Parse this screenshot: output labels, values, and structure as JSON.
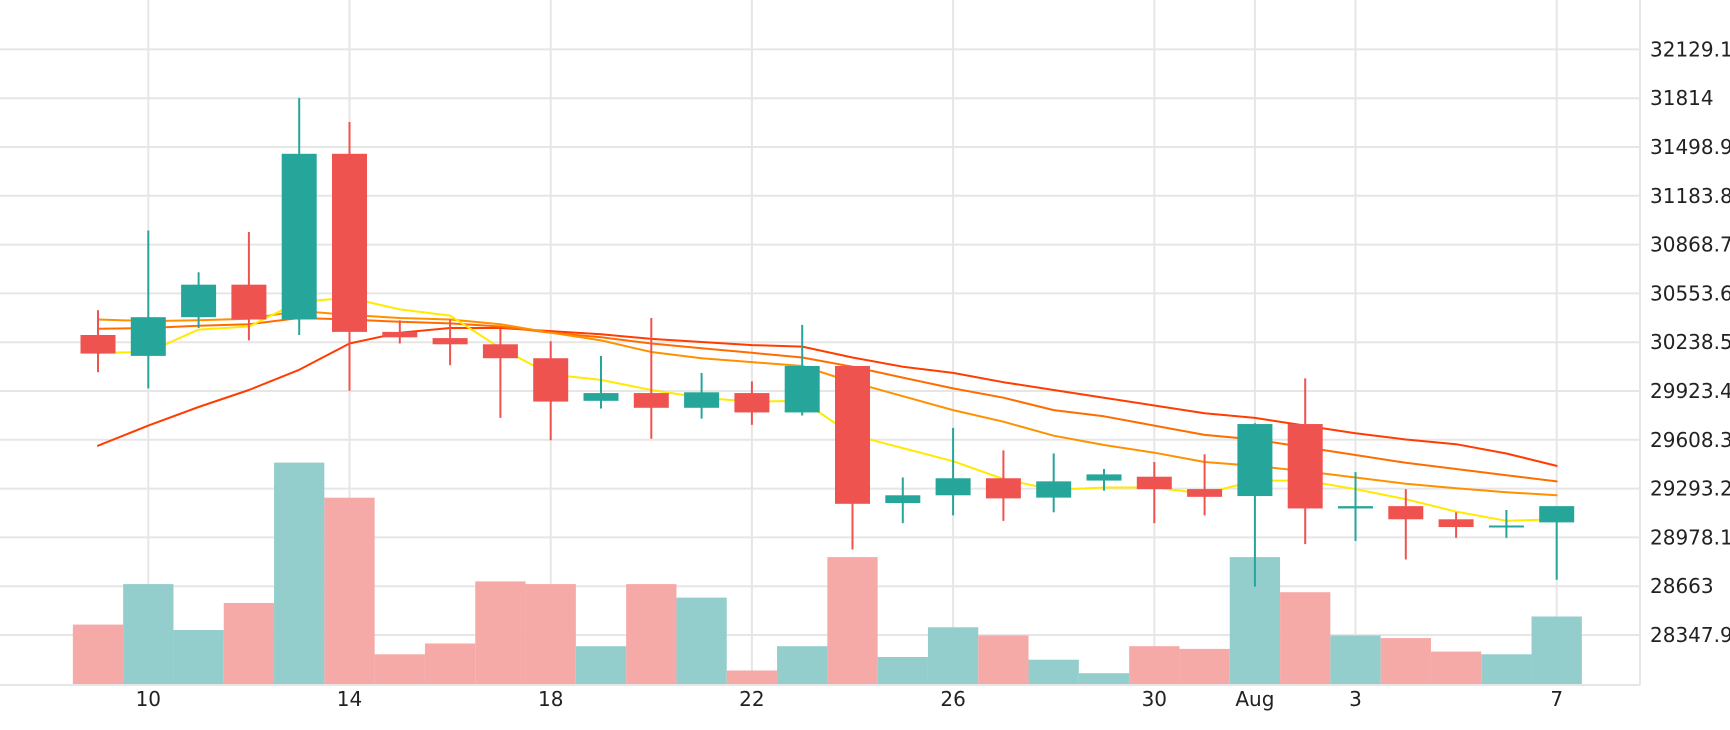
{
  "chart_data": {
    "type": "candlestick",
    "x_axis": {
      "ticks": [
        {
          "i": 1,
          "label": "10"
        },
        {
          "i": 5,
          "label": "14"
        },
        {
          "i": 9,
          "label": "18"
        },
        {
          "i": 13,
          "label": "22"
        },
        {
          "i": 17,
          "label": "26"
        },
        {
          "i": 21,
          "label": "30"
        },
        {
          "i": 23,
          "label": "Aug"
        },
        {
          "i": 25,
          "label": "3"
        },
        {
          "i": 29,
          "label": "7"
        }
      ]
    },
    "y_axis": {
      "ticks": [
        "32129.1",
        "31814",
        "31498.9",
        "31183.8",
        "30868.7",
        "30553.6",
        "30238.5",
        "29923.4",
        "29608.3",
        "29293.2",
        "28978.1",
        "28663",
        "28347.9"
      ],
      "range": [
        28033,
        32444
      ]
    },
    "candles": [
      {
        "date": "Jul 9",
        "open": 30285,
        "high": 30445,
        "low": 30045,
        "close": 30165
      },
      {
        "date": "Jul 10",
        "open": 30150,
        "high": 30960,
        "low": 29940,
        "close": 30400
      },
      {
        "date": "Jul 11",
        "open": 30400,
        "high": 30690,
        "low": 30330,
        "close": 30610
      },
      {
        "date": "Jul 12",
        "open": 30610,
        "high": 30950,
        "low": 30250,
        "close": 30385
      },
      {
        "date": "Jul 13",
        "open": 30385,
        "high": 31815,
        "low": 30285,
        "close": 31455
      },
      {
        "date": "Jul 14",
        "open": 31455,
        "high": 31660,
        "low": 29925,
        "close": 30305
      },
      {
        "date": "Jul 15",
        "open": 30305,
        "high": 30380,
        "low": 30230,
        "close": 30270
      },
      {
        "date": "Jul 16",
        "open": 30265,
        "high": 30385,
        "low": 30090,
        "close": 30225
      },
      {
        "date": "Jul 17",
        "open": 30225,
        "high": 30325,
        "low": 29750,
        "close": 30135
      },
      {
        "date": "Jul 18",
        "open": 30135,
        "high": 30245,
        "low": 29605,
        "close": 29855
      },
      {
        "date": "Jul 19",
        "open": 29860,
        "high": 30150,
        "low": 29810,
        "close": 29910
      },
      {
        "date": "Jul 20",
        "open": 29910,
        "high": 30395,
        "low": 29615,
        "close": 29815
      },
      {
        "date": "Jul 21",
        "open": 29815,
        "high": 30040,
        "low": 29745,
        "close": 29915
      },
      {
        "date": "Jul 22",
        "open": 29910,
        "high": 29985,
        "low": 29705,
        "close": 29785
      },
      {
        "date": "Jul 23",
        "open": 29785,
        "high": 30350,
        "low": 29765,
        "close": 30085
      },
      {
        "date": "Jul 24",
        "open": 30085,
        "high": 30085,
        "low": 28900,
        "close": 29195
      },
      {
        "date": "Jul 25",
        "open": 29200,
        "high": 29365,
        "low": 29070,
        "close": 29250
      },
      {
        "date": "Jul 26",
        "open": 29250,
        "high": 29685,
        "low": 29120,
        "close": 29360
      },
      {
        "date": "Jul 27",
        "open": 29360,
        "high": 29540,
        "low": 29085,
        "close": 29230
      },
      {
        "date": "Jul 28",
        "open": 29235,
        "high": 29520,
        "low": 29140,
        "close": 29340
      },
      {
        "date": "Jul 29",
        "open": 29345,
        "high": 29420,
        "low": 29280,
        "close": 29385
      },
      {
        "date": "Jul 30",
        "open": 29370,
        "high": 29465,
        "low": 29070,
        "close": 29290
      },
      {
        "date": "Jul 31",
        "open": 29290,
        "high": 29515,
        "low": 29120,
        "close": 29240
      },
      {
        "date": "Aug 1",
        "open": 29245,
        "high": 29715,
        "low": 28660,
        "close": 29710
      },
      {
        "date": "Aug 2",
        "open": 29710,
        "high": 30005,
        "low": 28935,
        "close": 29165
      },
      {
        "date": "Aug 3",
        "open": 29165,
        "high": 29400,
        "low": 28955,
        "close": 29180
      },
      {
        "date": "Aug 4",
        "open": 29180,
        "high": 29290,
        "low": 28835,
        "close": 29095
      },
      {
        "date": "Aug 5",
        "open": 29095,
        "high": 29140,
        "low": 28975,
        "close": 29045
      },
      {
        "date": "Aug 6",
        "open": 29045,
        "high": 29155,
        "low": 28975,
        "close": 29055
      },
      {
        "date": "Aug 7",
        "open": 29075,
        "high": 29175,
        "low": 28705,
        "close": 29180
      }
    ],
    "volume_relative": [
      0.22,
      0.37,
      0.2,
      0.3,
      0.82,
      0.69,
      0.11,
      0.15,
      0.38,
      0.37,
      0.14,
      0.37,
      0.32,
      0.05,
      0.14,
      0.47,
      0.1,
      0.21,
      0.18,
      0.09,
      0.04,
      0.14,
      0.13,
      0.47,
      0.34,
      0.18,
      0.17,
      0.12,
      0.11,
      0.25
    ],
    "moving_averages": [
      {
        "color": "#ff3d00",
        "values": [
          29570,
          29700,
          29820,
          29930,
          30060,
          30230,
          30300,
          30330,
          30330,
          30310,
          30290,
          30260,
          30240,
          30220,
          30210,
          30140,
          30080,
          30040,
          29980,
          29930,
          29880,
          29830,
          29780,
          29750,
          29700,
          29650,
          29610,
          29580,
          29520,
          29440
        ]
      },
      {
        "color": "#ff6d00",
        "values": [
          30325,
          30330,
          30345,
          30355,
          30395,
          30385,
          30370,
          30360,
          30340,
          30300,
          30270,
          30230,
          30200,
          30170,
          30140,
          30080,
          30010,
          29940,
          29880,
          29800,
          29760,
          29700,
          29640,
          29610,
          29560,
          29510,
          29460,
          29420,
          29380,
          29340
        ]
      },
      {
        "color": "#ff9100",
        "values": [
          30385,
          30375,
          30380,
          30390,
          30440,
          30415,
          30395,
          30385,
          30355,
          30300,
          30250,
          30175,
          30135,
          30110,
          30085,
          29980,
          29890,
          29800,
          29725,
          29635,
          29575,
          29525,
          29465,
          29440,
          29405,
          29365,
          29325,
          29295,
          29270,
          29250
        ]
      },
      {
        "color": "#ffea00",
        "values": [
          30170,
          30175,
          30320,
          30340,
          30500,
          30525,
          30450,
          30410,
          30200,
          30030,
          29995,
          29930,
          29880,
          29855,
          29860,
          29640,
          29555,
          29470,
          29355,
          29285,
          29300,
          29300,
          29260,
          29345,
          29345,
          29290,
          29225,
          29145,
          29085,
          29095
        ]
      }
    ],
    "colors": {
      "up": "#26a69a",
      "down": "#ef5350",
      "volume_up": "#94cecc",
      "volume_down": "#f5aaa8",
      "grid": "#e6e6e6"
    }
  }
}
